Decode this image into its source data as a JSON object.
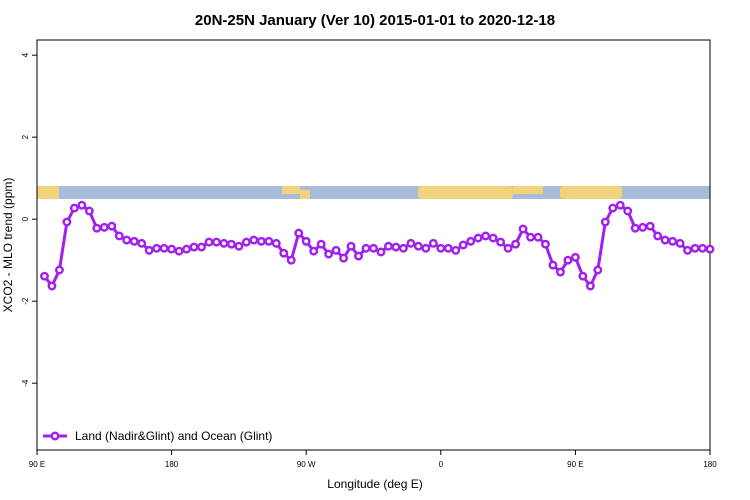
{
  "chart_data": {
    "type": "line",
    "title": "20N-25N January (Ver 10)   2015-01-01 to 2020-12-18",
    "xlabel": "Longitude (deg E)",
    "ylabel": "XCO2 - MLO trend (ppm)",
    "xlim": [
      90,
      540
    ],
    "ylim": [
      -5.63,
      4.37
    ],
    "xticks": [
      {
        "value": 90,
        "label": "90 E"
      },
      180,
      {
        "value": 270,
        "label": "90 W"
      },
      {
        "value": 360,
        "label": "0"
      },
      {
        "value": 450,
        "label": "90 E"
      },
      {
        "value": 540,
        "label": "180"
      }
    ],
    "yticks": [
      -4,
      -2,
      0,
      2,
      4
    ],
    "legend": "bottomleft",
    "x": [
      95,
      100,
      105,
      110,
      115,
      120,
      125,
      130,
      135,
      140,
      145,
      150,
      155,
      160,
      165,
      170,
      175,
      180,
      185,
      190,
      195,
      200,
      205,
      210,
      215,
      220,
      225,
      230,
      235,
      240,
      245,
      250,
      255,
      260,
      265,
      270,
      275,
      280,
      285,
      290,
      295,
      300,
      305,
      310,
      315,
      320,
      325,
      330,
      335,
      340,
      345,
      350,
      355,
      360,
      365,
      370,
      375,
      380,
      385,
      390,
      395,
      400,
      405,
      410,
      415,
      420,
      425,
      430,
      435,
      440,
      445,
      450,
      455,
      460,
      465,
      470,
      475,
      480,
      485,
      490,
      495,
      500,
      505,
      510,
      515,
      520,
      525,
      530,
      535,
      540
    ],
    "series": [
      {
        "name": "Land (Nadir&Glint) and Ocean (Glint)",
        "color": "#a020f0",
        "values": [
          -1.39,
          -1.63,
          -1.24,
          -0.07,
          0.27,
          0.34,
          0.2,
          -0.22,
          -0.2,
          -0.17,
          -0.41,
          -0.51,
          -0.54,
          -0.59,
          -0.76,
          -0.71,
          -0.71,
          -0.73,
          -0.78,
          -0.73,
          -0.68,
          -0.68,
          -0.56,
          -0.56,
          -0.59,
          -0.61,
          -0.66,
          -0.56,
          -0.51,
          -0.54,
          -0.54,
          -0.59,
          -0.83,
          -1.0,
          -0.34,
          -0.54,
          -0.78,
          -0.61,
          -0.85,
          -0.76,
          -0.95,
          -0.66,
          -0.9,
          -0.71,
          -0.71,
          -0.8,
          -0.66,
          -0.68,
          -0.71,
          -0.59,
          -0.66,
          -0.71,
          -0.59,
          -0.71,
          -0.71,
          -0.76,
          -0.63,
          -0.54,
          -0.46,
          -0.41,
          -0.46,
          -0.56,
          -0.71,
          -0.61,
          -0.24,
          -0.44,
          -0.44,
          -0.61,
          -1.12,
          -1.29,
          -1.0,
          -0.93,
          -1.39,
          -1.63,
          -1.24,
          -0.07,
          0.27,
          0.34,
          0.2,
          -0.22,
          -0.2,
          -0.17,
          -0.41,
          -0.51,
          -0.54,
          -0.59,
          -0.76,
          -0.71,
          -0.71,
          -0.73
        ]
      }
    ]
  }
}
